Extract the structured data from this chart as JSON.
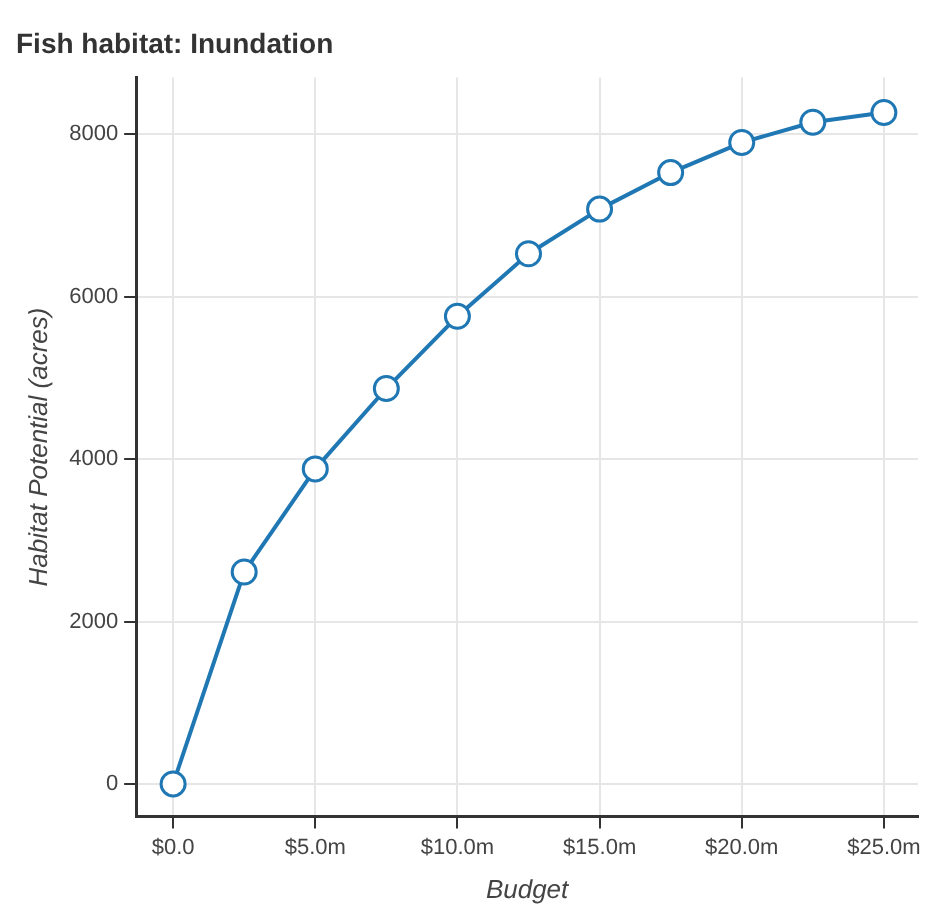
{
  "chart_data": {
    "type": "line",
    "title": "Fish habitat: Inundation",
    "xlabel": "Budget",
    "ylabel": "Habitat Potential (acres)",
    "x": [
      0,
      2.5,
      5,
      7.5,
      10,
      12.5,
      15,
      17.5,
      20,
      22.5,
      25
    ],
    "series": [
      {
        "color": "#1f77b4",
        "values": [
          0,
          2610,
          3880,
          4870,
          5760,
          6530,
          7080,
          7530,
          7900,
          8150,
          8270
        ]
      }
    ],
    "xlim": [
      -1.3,
      26.2
    ],
    "ylim": [
      -400,
      8700
    ],
    "xticks": [
      {
        "value": 0,
        "label": "$0.0"
      },
      {
        "value": 5,
        "label": "$5.0m"
      },
      {
        "value": 10,
        "label": "$10.0m"
      },
      {
        "value": 15,
        "label": "$15.0m"
      },
      {
        "value": 20,
        "label": "$20.0m"
      },
      {
        "value": 25,
        "label": "$25.0m"
      }
    ],
    "yticks": [
      0,
      2000,
      4000,
      6000,
      8000
    ],
    "grid": true,
    "legend": false,
    "marker": "circle",
    "line_style": "solid"
  }
}
